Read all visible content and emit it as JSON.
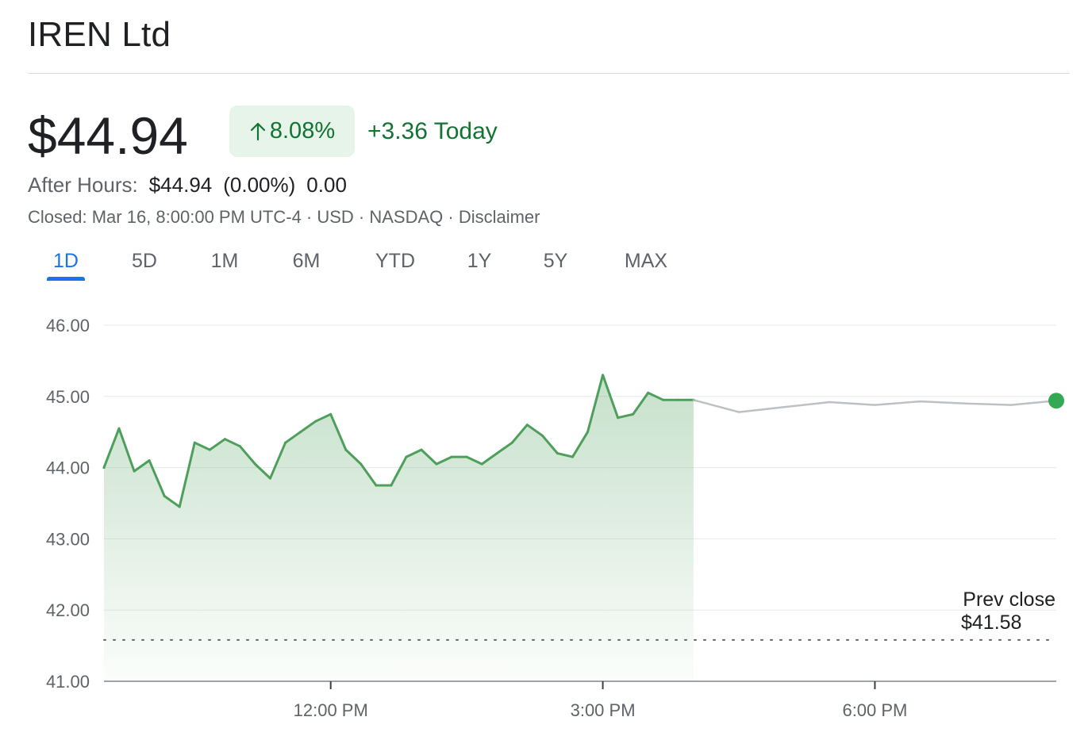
{
  "header": {
    "title": "IREN Ltd"
  },
  "quote": {
    "price": "$44.94",
    "change_percent": "8.08%",
    "change_today": "+3.36 Today",
    "after_hours_label": "After Hours:",
    "after_hours_price": "$44.94",
    "after_hours_percent": "(0.00%)",
    "after_hours_change": "0.00",
    "meta": "Closed: Mar 16, 8:00:00 PM UTC-4 · USD · NASDAQ · Disclaimer"
  },
  "icons": {
    "change_arrow": "arrow-up-icon"
  },
  "colors": {
    "up_green": "#137333",
    "line_green": "#4e9f5b",
    "after_hours_gray": "#bdc1c6",
    "active_tab": "#1a73e8"
  },
  "tabs": [
    {
      "label": "1D",
      "active": true
    },
    {
      "label": "5D",
      "active": false
    },
    {
      "label": "1M",
      "active": false
    },
    {
      "label": "6M",
      "active": false
    },
    {
      "label": "YTD",
      "active": false
    },
    {
      "label": "1Y",
      "active": false
    },
    {
      "label": "5Y",
      "active": false
    },
    {
      "label": "MAX",
      "active": false
    }
  ],
  "chart_data": {
    "type": "line",
    "xlabel": "",
    "ylabel": "",
    "ylim": [
      41,
      46
    ],
    "y_ticks": [
      "41.00",
      "42.00",
      "43.00",
      "44.00",
      "45.00",
      "46.00"
    ],
    "x_ticks": [
      "12:00 PM",
      "3:00 PM",
      "6:00 PM"
    ],
    "x_time_range": [
      "9:30 AM",
      "8:00 PM"
    ],
    "grid": true,
    "prev_close": {
      "label": "Prev close",
      "value": 41.58,
      "value_label": "$41.58"
    },
    "series": [
      {
        "session": "regular",
        "x": [
          "9:30 AM",
          "9:40 AM",
          "9:50 AM",
          "10:00 AM",
          "10:10 AM",
          "10:20 AM",
          "10:30 AM",
          "10:40 AM",
          "10:50 AM",
          "11:00 AM",
          "11:10 AM",
          "11:20 AM",
          "11:30 AM",
          "11:40 AM",
          "11:50 AM",
          "12:00 PM",
          "12:10 PM",
          "12:20 PM",
          "12:30 PM",
          "12:40 PM",
          "12:50 PM",
          "1:00 PM",
          "1:10 PM",
          "1:20 PM",
          "1:30 PM",
          "1:40 PM",
          "1:50 PM",
          "2:00 PM",
          "2:10 PM",
          "2:20 PM",
          "2:30 PM",
          "2:40 PM",
          "2:50 PM",
          "3:00 PM",
          "3:10 PM",
          "3:20 PM",
          "3:30 PM",
          "3:40 PM",
          "3:50 PM",
          "4:00 PM"
        ],
        "values": [
          44.0,
          44.55,
          43.95,
          44.1,
          43.6,
          43.45,
          44.35,
          44.25,
          44.4,
          44.3,
          44.05,
          43.85,
          44.35,
          44.5,
          44.65,
          44.75,
          44.25,
          44.05,
          43.75,
          43.75,
          44.15,
          44.25,
          44.05,
          44.15,
          44.15,
          44.05,
          44.2,
          44.35,
          44.6,
          44.45,
          44.2,
          44.15,
          44.5,
          45.3,
          44.7,
          44.75,
          45.05,
          44.95,
          44.95,
          44.95
        ]
      },
      {
        "session": "after_hours",
        "x": [
          "4:00 PM",
          "4:30 PM",
          "5:00 PM",
          "5:30 PM",
          "6:00 PM",
          "6:30 PM",
          "7:00 PM",
          "7:30 PM",
          "8:00 PM"
        ],
        "values": [
          44.95,
          44.78,
          44.85,
          44.92,
          44.88,
          44.93,
          44.9,
          44.88,
          44.94
        ]
      }
    ]
  }
}
